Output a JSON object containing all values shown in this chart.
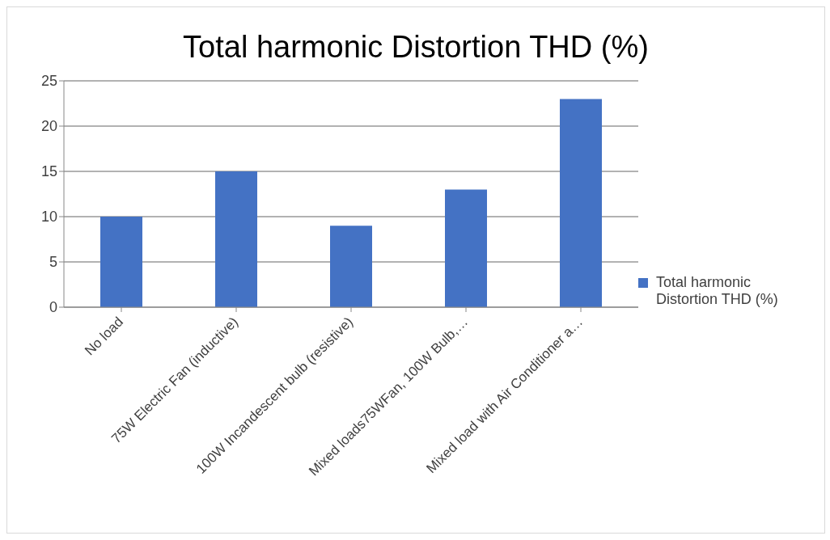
{
  "chart_data": {
    "type": "bar",
    "title": "Total harmonic Distortion THD (%)",
    "categories": [
      "No load",
      "75W Electric Fan (inductive)",
      "100W Incandescent bulb (resistive)",
      "Mixed loads75WFan, 100W Bulb,…",
      "Mixed load with Air Conditioner a…"
    ],
    "series": [
      {
        "name": "Total harmonic Distortion THD (%)",
        "color": "#4472c4",
        "values": [
          10,
          15,
          9,
          13,
          23
        ]
      }
    ],
    "ylim": [
      0,
      25
    ],
    "yticks": [
      0,
      5,
      10,
      15,
      20,
      25
    ],
    "grid": "y",
    "legend": "right"
  }
}
